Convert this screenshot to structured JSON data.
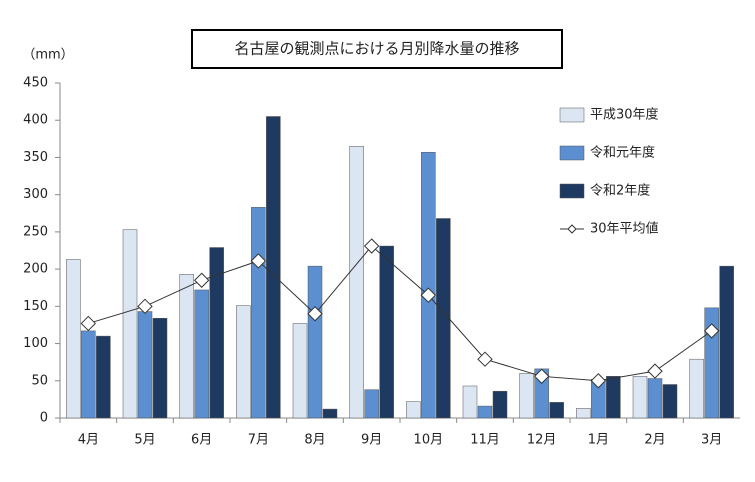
{
  "chart_data": {
    "type": "bar",
    "title": "名古屋の観測点における月別降水量の推移",
    "y_unit": "（mm）",
    "categories": [
      "4月",
      "5月",
      "6月",
      "7月",
      "8月",
      "9月",
      "10月",
      "11月",
      "12月",
      "1月",
      "2月",
      "3月"
    ],
    "series": [
      {
        "name": "平成30年度",
        "type": "bar",
        "color": "#dce6f2",
        "values": [
          213,
          253,
          193,
          151,
          127,
          365,
          22,
          43,
          60,
          13,
          56,
          79
        ]
      },
      {
        "name": "令和元年度",
        "type": "bar",
        "color": "#5b8fd0",
        "values": [
          117,
          143,
          172,
          283,
          204,
          38,
          357,
          16,
          66,
          52,
          53,
          148
        ]
      },
      {
        "name": "令和2年度",
        "type": "bar",
        "color": "#1f3a60",
        "values": [
          110,
          134,
          229,
          405,
          12,
          231,
          268,
          36,
          21,
          56,
          45,
          204
        ]
      },
      {
        "name": "30年平均値",
        "type": "line",
        "color": "#333333",
        "values": [
          127,
          150,
          185,
          211,
          140,
          231,
          165,
          79,
          56,
          50,
          63,
          117
        ]
      }
    ],
    "ylim": [
      0,
      450
    ],
    "yticks": [
      0,
      50,
      100,
      150,
      200,
      250,
      300,
      350,
      400,
      450
    ],
    "grid": false,
    "legend": "right"
  }
}
